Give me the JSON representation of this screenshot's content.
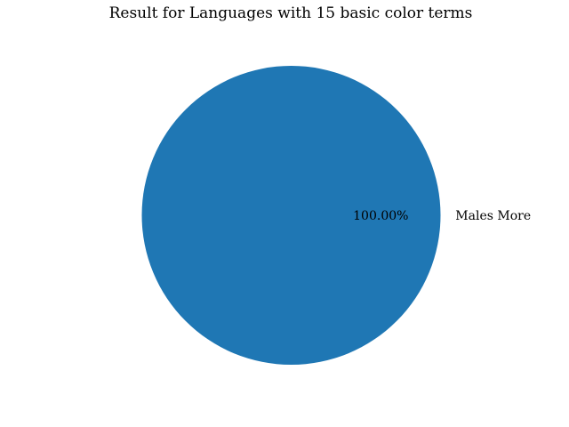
{
  "chart_data": {
    "type": "pie",
    "title": "Result for Languages with 15 basic color terms",
    "slices": [
      {
        "label": "Males More",
        "value": 100.0,
        "pct_label": "100.00%",
        "color": "#1f77b4"
      }
    ]
  }
}
